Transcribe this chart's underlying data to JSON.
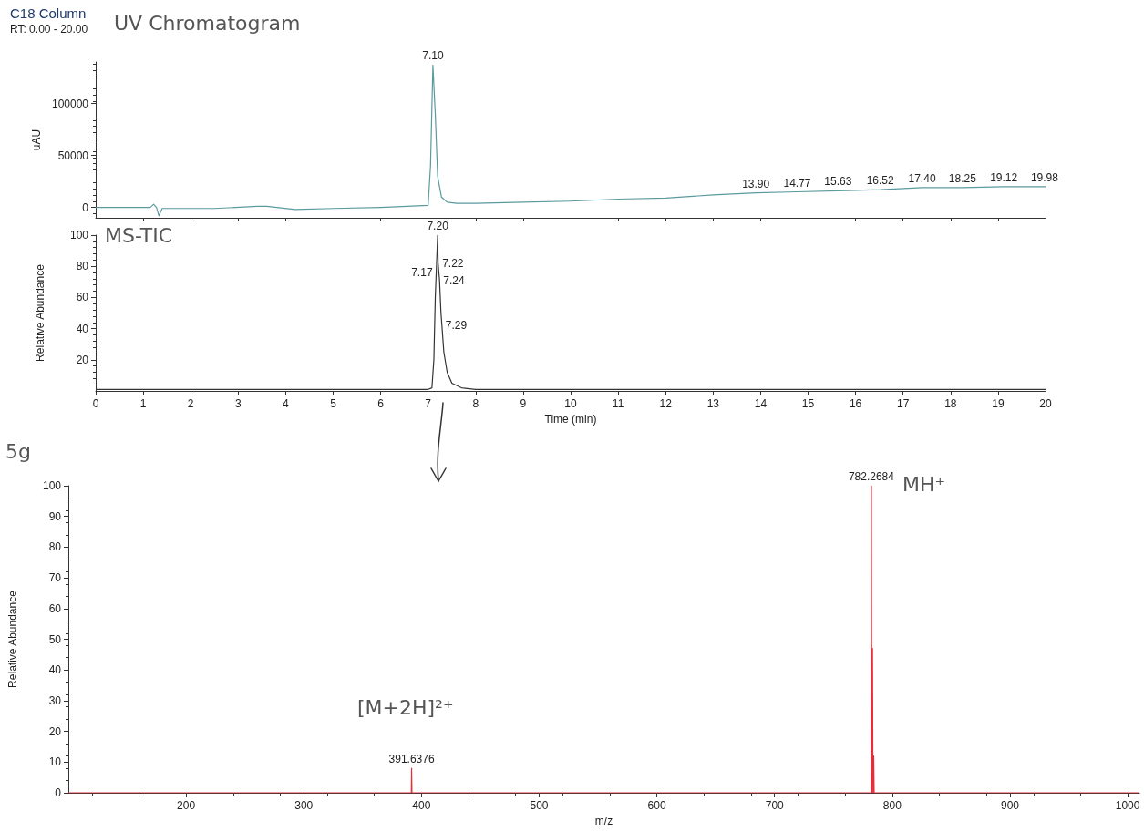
{
  "chart_data": [
    {
      "type": "line",
      "title": "C18 Column",
      "subtitle": "RT: 0.00 - 20.00",
      "ylabel": "uAU",
      "xlim": [
        0,
        20
      ],
      "ylim": [
        -10000,
        140000
      ],
      "yticks": [
        0,
        50000,
        100000
      ],
      "tick_labels": "y",
      "series": [
        {
          "color": "#5b9aa0",
          "x": [
            0,
            1.15,
            1.22,
            1.28,
            1.33,
            1.4,
            1.6,
            2.5,
            3.4,
            3.6,
            4.2,
            5,
            6,
            7.0,
            7.05,
            7.1,
            7.15,
            7.2,
            7.28,
            7.4,
            7.6,
            8,
            9,
            10,
            11,
            12,
            13,
            13.9,
            14.77,
            15.63,
            16.52,
            17.4,
            18.25,
            19.12,
            19.98,
            20
          ],
          "values": [
            0,
            0,
            3000,
            0,
            -8000,
            -1000,
            -1000,
            -1000,
            1000,
            1000,
            -2000,
            -1000,
            0,
            2000,
            40000,
            137000,
            90000,
            30000,
            10000,
            5000,
            4000,
            4000,
            5000,
            6000,
            8000,
            9000,
            12000,
            14000,
            15000,
            16000,
            17000,
            19000,
            19000,
            20000,
            20000,
            20000
          ]
        }
      ],
      "annotations": [
        "UV Chromatogram",
        {
          "text": "7.10",
          "x": 7.1,
          "y": 137000
        },
        {
          "text": "13.90",
          "x": 13.9,
          "y": 14000
        },
        {
          "text": "14.77",
          "x": 14.77,
          "y": 15000
        },
        {
          "text": "15.63",
          "x": 15.63,
          "y": 16000
        },
        {
          "text": "16.52",
          "x": 16.52,
          "y": 17000
        },
        {
          "text": "17.40",
          "x": 17.4,
          "y": 19000
        },
        {
          "text": "18.25",
          "x": 18.25,
          "y": 19000
        },
        {
          "text": "19.12",
          "x": 19.12,
          "y": 20000
        },
        {
          "text": "19.98",
          "x": 19.98,
          "y": 20000
        }
      ]
    },
    {
      "type": "line",
      "xlabel": "Time (min)",
      "ylabel": "Relative Abundance",
      "xlim": [
        0,
        20
      ],
      "ylim": [
        0,
        100
      ],
      "xticks": [
        0,
        1,
        2,
        3,
        4,
        5,
        6,
        7,
        8,
        9,
        10,
        11,
        12,
        13,
        14,
        15,
        16,
        17,
        18,
        19,
        20
      ],
      "yticks": [
        20,
        40,
        60,
        80,
        100
      ],
      "series": [
        {
          "color": "#333333",
          "x": [
            0,
            7.0,
            7.08,
            7.12,
            7.15,
            7.17,
            7.2,
            7.21,
            7.22,
            7.24,
            7.27,
            7.29,
            7.33,
            7.4,
            7.5,
            7.7,
            8,
            20
          ],
          "values": [
            1,
            1,
            2,
            20,
            60,
            76,
            100,
            82,
            82,
            71,
            50,
            42,
            25,
            12,
            5,
            2,
            1,
            1
          ]
        }
      ],
      "annotations": [
        "MS-TIC",
        {
          "text": "7.20",
          "x": 7.2,
          "y": 100
        },
        {
          "text": "7.22",
          "x": 7.22,
          "y": 82
        },
        {
          "text": "7.17",
          "x": 7.17,
          "y": 76
        },
        {
          "text": "7.24",
          "x": 7.24,
          "y": 71
        },
        {
          "text": "7.29",
          "x": 7.29,
          "y": 42
        }
      ]
    },
    {
      "type": "line",
      "xlabel": "m/z",
      "ylabel": "Relative Abundance",
      "xlim": [
        100,
        1010
      ],
      "ylim": [
        0,
        100
      ],
      "xticks": [
        200,
        300,
        400,
        500,
        600,
        700,
        800,
        900,
        1000
      ],
      "yticks": [
        0,
        10,
        20,
        30,
        40,
        50,
        60,
        70,
        80,
        90,
        100
      ],
      "series": [
        {
          "color": "#e0303a",
          "x": [
            100,
            391.4,
            391.6376,
            391.9,
            782.0,
            782.2684,
            782.6,
            783.2,
            783.6,
            784.2,
            784.6,
            1010
          ],
          "values": [
            0,
            0,
            8,
            0,
            0,
            100,
            0,
            47,
            0,
            12,
            0,
            0
          ]
        }
      ],
      "annotations": [
        "5g",
        "[M+2H]²⁺",
        "MH⁺",
        {
          "text": "391.6376",
          "x": 391.6376,
          "y": 8
        },
        {
          "text": "782.2684",
          "x": 782.2684,
          "y": 100
        }
      ]
    }
  ]
}
